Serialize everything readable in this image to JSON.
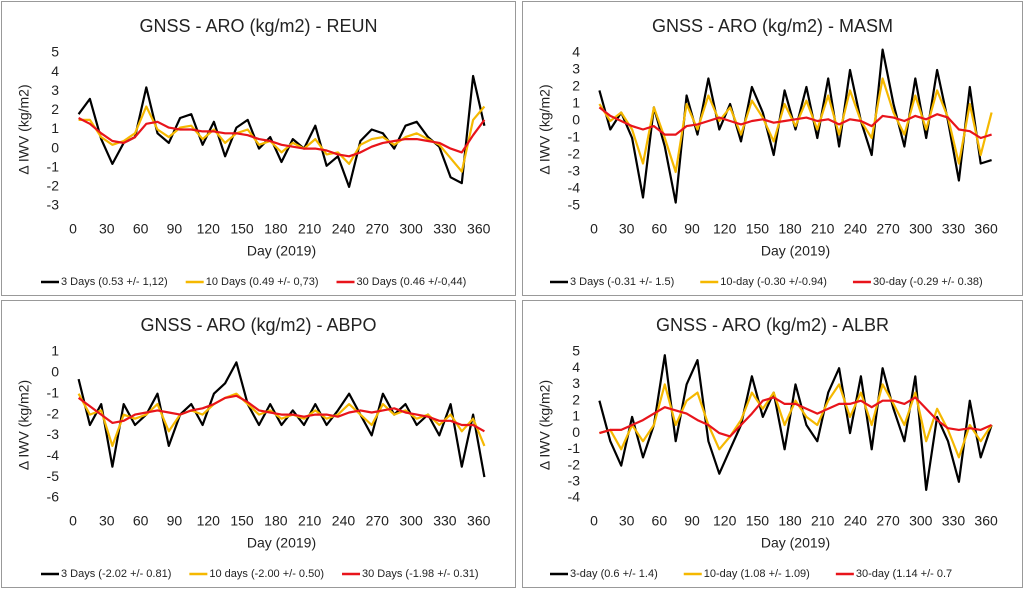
{
  "chart_data": [
    {
      "type": "line",
      "title": "GNSS - ARO (kg/m2) - REUN",
      "xlabel": "Day (2019)",
      "ylabel": "Δ IWV (kg/m2)",
      "legend": "bottom",
      "grid": false,
      "x": [
        5,
        15,
        25,
        35,
        45,
        55,
        65,
        75,
        85,
        95,
        105,
        115,
        125,
        135,
        145,
        155,
        165,
        175,
        185,
        195,
        205,
        215,
        225,
        235,
        245,
        255,
        265,
        275,
        285,
        295,
        305,
        315,
        325,
        335,
        345,
        355,
        365
      ],
      "xlim": [
        0,
        370
      ],
      "xticks": [
        0,
        30,
        60,
        90,
        120,
        150,
        180,
        210,
        240,
        270,
        300,
        330,
        360
      ],
      "ylim": [
        -3,
        5
      ],
      "yticks": [
        -3,
        -2,
        -1,
        0,
        1,
        2,
        3,
        4,
        5
      ],
      "series": [
        {
          "name": "3 Days (0.53 +/- 1,12)",
          "color": "#000000",
          "values": [
            1.8,
            2.6,
            0.5,
            -0.8,
            0.3,
            0.6,
            3.2,
            0.8,
            0.3,
            1.6,
            1.8,
            0.2,
            1.4,
            -0.4,
            1.1,
            1.5,
            0.0,
            0.6,
            -0.7,
            0.5,
            0.0,
            1.2,
            -0.9,
            -0.4,
            -2.0,
            0.4,
            1.0,
            0.8,
            0.0,
            1.2,
            1.4,
            0.6,
            0.1,
            -1.5,
            -1.8,
            3.8,
            1.2
          ]
        },
        {
          "name": "10 Days (0.49 +/- 0,73)",
          "color": "#f5b800",
          "values": [
            1.5,
            1.5,
            0.6,
            0.2,
            0.4,
            0.8,
            2.2,
            1.0,
            0.6,
            1.1,
            1.2,
            0.5,
            1.0,
            0.3,
            0.8,
            1.0,
            0.2,
            0.4,
            -0.2,
            0.3,
            0.0,
            0.5,
            -0.3,
            -0.2,
            -0.8,
            0.2,
            0.5,
            0.6,
            0.2,
            0.6,
            0.8,
            0.5,
            0.2,
            -0.5,
            -1.2,
            1.5,
            2.2
          ]
        },
        {
          "name": "30 Days (0.46 +/-0,44)",
          "color": "#e8141b",
          "values": [
            1.6,
            1.3,
            0.8,
            0.4,
            0.3,
            0.6,
            1.3,
            1.4,
            1.1,
            1.0,
            1.0,
            0.9,
            0.9,
            0.8,
            0.8,
            0.7,
            0.5,
            0.4,
            0.2,
            0.1,
            0.0,
            0.0,
            -0.1,
            -0.3,
            -0.4,
            -0.2,
            0.1,
            0.3,
            0.4,
            0.5,
            0.5,
            0.4,
            0.3,
            0.0,
            -0.2,
            0.7,
            1.5
          ]
        }
      ]
    },
    {
      "type": "line",
      "title": "GNSS - ARO (kg/m2) - MASM",
      "xlabel": "Day (2019)",
      "ylabel": "Δ IWV (kg/m2)",
      "legend": "bottom",
      "grid": false,
      "x": [
        5,
        15,
        25,
        35,
        45,
        55,
        65,
        75,
        85,
        95,
        105,
        115,
        125,
        135,
        145,
        155,
        165,
        175,
        185,
        195,
        205,
        215,
        225,
        235,
        245,
        255,
        265,
        275,
        285,
        295,
        305,
        315,
        325,
        335,
        345,
        355,
        365
      ],
      "xlim": [
        0,
        370
      ],
      "xticks": [
        0,
        30,
        60,
        90,
        120,
        150,
        180,
        210,
        240,
        270,
        300,
        330,
        360
      ],
      "ylim": [
        -5,
        4
      ],
      "yticks": [
        -5,
        -4,
        -3,
        -2,
        -1,
        0,
        1,
        2,
        3,
        4
      ],
      "series": [
        {
          "name": "3 Days (-0.31 +/- 1.5)",
          "color": "#000000",
          "values": [
            1.8,
            -0.5,
            0.5,
            -1.0,
            -4.5,
            0.8,
            -1.5,
            -4.8,
            1.5,
            -0.8,
            2.5,
            -0.5,
            1.0,
            -1.2,
            2.0,
            0.5,
            -2.0,
            1.8,
            -0.5,
            2.0,
            -1.0,
            2.5,
            -1.5,
            3.0,
            0.0,
            -2.0,
            4.2,
            1.0,
            -1.5,
            2.5,
            -1.0,
            3.0,
            0.0,
            -3.5,
            2.0,
            -2.5,
            -2.3
          ]
        },
        {
          "name": "10-day (-0.30 +/-0.94)",
          "color": "#f5b800",
          "values": [
            1.0,
            0.0,
            0.5,
            -0.5,
            -2.5,
            0.8,
            -1.0,
            -3.0,
            1.0,
            -0.5,
            1.5,
            0.0,
            0.8,
            -0.8,
            1.2,
            0.2,
            -1.2,
            1.0,
            -0.3,
            1.2,
            -0.5,
            1.5,
            -0.8,
            1.8,
            0.0,
            -1.0,
            2.5,
            0.5,
            -0.8,
            1.5,
            -0.5,
            1.8,
            0.2,
            -2.5,
            1.0,
            -2.0,
            0.5
          ]
        },
        {
          "name": "30-day (-0.29 +/- 0.38)",
          "color": "#e8141b",
          "values": [
            0.8,
            0.3,
            0.0,
            -0.3,
            -0.5,
            -0.3,
            -0.8,
            -0.8,
            -0.3,
            -0.2,
            0.0,
            0.2,
            0.0,
            -0.2,
            0.0,
            0.1,
            -0.1,
            0.0,
            0.1,
            0.2,
            0.0,
            0.1,
            -0.2,
            0.1,
            0.0,
            -0.3,
            0.3,
            0.2,
            0.0,
            0.3,
            0.1,
            0.4,
            0.2,
            -0.5,
            -0.6,
            -1.0,
            -0.8
          ]
        }
      ]
    },
    {
      "type": "line",
      "title": "GNSS - ARO (kg/m2) - ABPO",
      "xlabel": "Day (2019)",
      "ylabel": "Δ IWV (kg/m2)",
      "legend": "bottom",
      "grid": false,
      "x": [
        5,
        15,
        25,
        35,
        45,
        55,
        65,
        75,
        85,
        95,
        105,
        115,
        125,
        135,
        145,
        155,
        165,
        175,
        185,
        195,
        205,
        215,
        225,
        235,
        245,
        255,
        265,
        275,
        285,
        295,
        305,
        315,
        325,
        335,
        345,
        355,
        365
      ],
      "xlim": [
        0,
        370
      ],
      "xticks": [
        0,
        30,
        60,
        90,
        120,
        150,
        180,
        210,
        240,
        270,
        300,
        330,
        360
      ],
      "ylim": [
        -6,
        1
      ],
      "yticks": [
        -6,
        -5,
        -4,
        -3,
        -2,
        -1,
        0,
        1
      ],
      "series": [
        {
          "name": "3 Days (-2.02 +/- 0.81)",
          "color": "#000000",
          "values": [
            -0.3,
            -2.5,
            -1.5,
            -4.5,
            -1.5,
            -2.5,
            -2.0,
            -1.0,
            -3.5,
            -2.0,
            -1.5,
            -2.5,
            -1.0,
            -0.5,
            0.5,
            -1.5,
            -2.5,
            -1.5,
            -2.5,
            -1.8,
            -2.5,
            -1.5,
            -2.5,
            -1.8,
            -1.0,
            -2.0,
            -3.0,
            -1.0,
            -2.0,
            -1.5,
            -2.5,
            -2.0,
            -3.0,
            -1.5,
            -4.5,
            -2.0,
            -5.0
          ]
        },
        {
          "name": "10 days (-2.00 +/- 0.50)",
          "color": "#f5b800",
          "values": [
            -1.0,
            -2.0,
            -1.8,
            -3.5,
            -2.0,
            -2.2,
            -2.0,
            -1.5,
            -2.8,
            -2.0,
            -1.8,
            -2.0,
            -1.5,
            -1.2,
            -1.0,
            -1.5,
            -2.0,
            -1.8,
            -2.2,
            -2.0,
            -2.2,
            -1.8,
            -2.2,
            -2.0,
            -1.5,
            -2.0,
            -2.5,
            -1.5,
            -2.0,
            -1.8,
            -2.2,
            -2.0,
            -2.5,
            -2.0,
            -2.8,
            -2.2,
            -3.5
          ]
        },
        {
          "name": "30 Days (-1.98 +/- 0.31)",
          "color": "#e8141b",
          "values": [
            -1.2,
            -1.6,
            -2.0,
            -2.4,
            -2.3,
            -2.0,
            -1.9,
            -1.8,
            -1.9,
            -2.0,
            -1.8,
            -1.7,
            -1.5,
            -1.2,
            -1.1,
            -1.4,
            -1.8,
            -1.9,
            -2.0,
            -2.0,
            -2.1,
            -2.0,
            -2.0,
            -2.1,
            -1.9,
            -1.8,
            -1.9,
            -1.8,
            -1.7,
            -1.9,
            -2.0,
            -2.1,
            -2.3,
            -2.3,
            -2.5,
            -2.5,
            -2.8
          ]
        }
      ]
    },
    {
      "type": "line",
      "title": "GNSS - ARO (kg/m2) - ALBR",
      "xlabel": "Day (2019)",
      "ylabel": "Δ IWV (kg/m2)",
      "legend": "bottom",
      "grid": false,
      "x": [
        5,
        15,
        25,
        35,
        45,
        55,
        65,
        75,
        85,
        95,
        105,
        115,
        125,
        135,
        145,
        155,
        165,
        175,
        185,
        195,
        205,
        215,
        225,
        235,
        245,
        255,
        265,
        275,
        285,
        295,
        305,
        315,
        325,
        335,
        345,
        355,
        365
      ],
      "xlim": [
        0,
        370
      ],
      "xticks": [
        0,
        30,
        60,
        90,
        120,
        150,
        180,
        210,
        240,
        270,
        300,
        330,
        360
      ],
      "ylim": [
        -4,
        5
      ],
      "yticks": [
        -4,
        -3,
        -2,
        -1,
        0,
        1,
        2,
        3,
        4,
        5
      ],
      "series": [
        {
          "name": "3-day (0.6 +/- 1.4)",
          "color": "#000000",
          "values": [
            2.0,
            -0.5,
            -2.0,
            1.0,
            -1.5,
            0.5,
            4.8,
            -0.5,
            3.0,
            4.5,
            -0.5,
            -2.5,
            -1.0,
            0.5,
            3.5,
            1.0,
            2.5,
            -1.0,
            3.0,
            0.5,
            -0.5,
            2.5,
            4.0,
            0.0,
            3.5,
            -1.0,
            4.0,
            1.5,
            -0.5,
            3.5,
            -3.5,
            1.0,
            -0.5,
            -3.0,
            2.0,
            -1.5,
            0.5
          ]
        },
        {
          "name": "10-day (1.08 +/- 1.09)",
          "color": "#f5b800",
          "values": [
            0.0,
            0.2,
            -1.0,
            0.5,
            -0.5,
            0.5,
            3.0,
            0.5,
            2.0,
            2.5,
            0.5,
            -1.0,
            -0.2,
            0.8,
            2.5,
            1.5,
            2.5,
            0.5,
            2.0,
            1.0,
            0.5,
            2.0,
            3.0,
            1.0,
            2.5,
            0.5,
            3.0,
            1.8,
            0.5,
            2.5,
            -0.5,
            1.5,
            0.2,
            -1.5,
            0.5,
            -0.5,
            0.5
          ]
        },
        {
          "name": "30-day  (1.14 +/- 0.7",
          "color": "#e8141b",
          "values": [
            0.0,
            0.2,
            0.2,
            0.5,
            0.8,
            1.2,
            1.6,
            1.4,
            1.2,
            0.8,
            0.5,
            0.0,
            -0.2,
            0.5,
            1.2,
            2.0,
            2.2,
            1.8,
            1.8,
            1.5,
            1.2,
            1.5,
            1.8,
            1.8,
            2.0,
            1.6,
            2.0,
            2.0,
            1.8,
            2.2,
            1.5,
            0.8,
            0.3,
            0.2,
            0.3,
            0.2,
            0.5
          ]
        }
      ]
    }
  ]
}
